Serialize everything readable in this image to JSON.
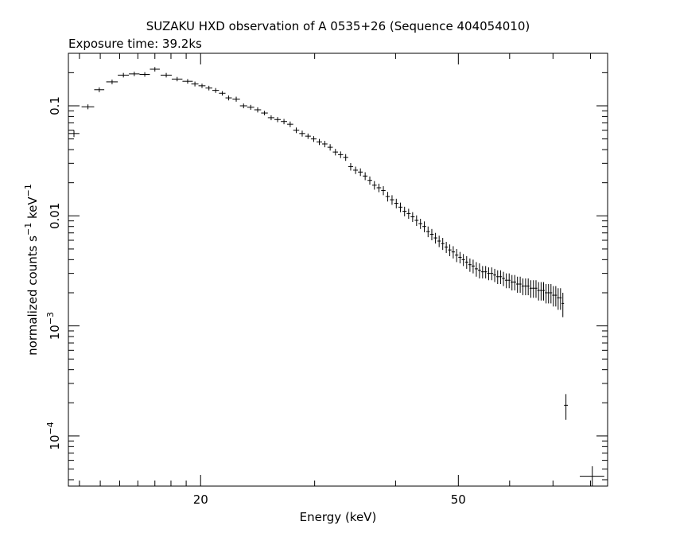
{
  "chart_data": {
    "type": "scatter",
    "title": "SUZAKU HXD observation of A 0535+26 (Sequence 404054010)",
    "subtitle": "Exposure time: 39.2ks",
    "xlabel": "Energy (keV)",
    "ylabel_main": "normalized counts s",
    "ylabel_exp1": "−1",
    "ylabel_mid": " keV",
    "ylabel_exp2": "−1",
    "x_scale": "log",
    "y_scale": "log",
    "xlim": [
      12.5,
      85
    ],
    "ylim": [
      3.5e-05,
      0.3
    ],
    "x_ticks": [
      {
        "value": 20,
        "label": "20"
      },
      {
        "value": 50,
        "label": "50"
      }
    ],
    "x_minor_ticks": [
      13,
      14,
      15,
      16,
      17,
      18,
      19,
      30,
      40,
      60,
      70,
      80
    ],
    "y_ticks": [
      {
        "value": 0.1,
        "label": "0.1",
        "exp": ""
      },
      {
        "value": 0.01,
        "label": "0.01",
        "exp": ""
      },
      {
        "value": 0.001,
        "label": "10",
        "exp": "−3"
      },
      {
        "value": 0.0001,
        "label": "10",
        "exp": "−4"
      }
    ],
    "grid": false,
    "series": [
      {
        "points": [
          [
            12.75,
            0.056,
            0.25,
            0.004
          ],
          [
            13.4,
            0.098,
            0.3,
            0.005
          ],
          [
            13.95,
            0.14,
            0.25,
            0.007
          ],
          [
            14.6,
            0.165,
            0.3,
            0.008
          ],
          [
            15.2,
            0.19,
            0.3,
            0.009
          ],
          [
            15.8,
            0.195,
            0.3,
            0.009
          ],
          [
            16.4,
            0.193,
            0.3,
            0.009
          ],
          [
            17.0,
            0.215,
            0.3,
            0.01
          ],
          [
            17.7,
            0.19,
            0.35,
            0.009
          ],
          [
            18.4,
            0.175,
            0.35,
            0.008
          ],
          [
            19.1,
            0.167,
            0.35,
            0.008
          ],
          [
            19.6,
            0.158,
            0.25,
            0.008
          ],
          [
            20.1,
            0.152,
            0.25,
            0.007
          ],
          [
            20.6,
            0.145,
            0.25,
            0.007
          ],
          [
            21.1,
            0.138,
            0.25,
            0.007
          ],
          [
            21.6,
            0.13,
            0.25,
            0.006
          ],
          [
            22.1,
            0.118,
            0.25,
            0.006
          ],
          [
            22.7,
            0.115,
            0.3,
            0.006
          ],
          [
            23.3,
            0.1,
            0.3,
            0.005
          ],
          [
            23.9,
            0.097,
            0.3,
            0.005
          ],
          [
            24.5,
            0.092,
            0.3,
            0.005
          ],
          [
            25.1,
            0.086,
            0.3,
            0.004
          ],
          [
            25.7,
            0.078,
            0.3,
            0.004
          ],
          [
            26.3,
            0.075,
            0.3,
            0.004
          ],
          [
            26.9,
            0.072,
            0.3,
            0.004
          ],
          [
            27.5,
            0.068,
            0.3,
            0.004
          ],
          [
            28.1,
            0.06,
            0.3,
            0.0035
          ],
          [
            28.7,
            0.056,
            0.3,
            0.0035
          ],
          [
            29.3,
            0.053,
            0.3,
            0.003
          ],
          [
            29.9,
            0.05,
            0.3,
            0.003
          ],
          [
            30.5,
            0.047,
            0.3,
            0.003
          ],
          [
            31.1,
            0.045,
            0.3,
            0.003
          ],
          [
            31.7,
            0.042,
            0.3,
            0.0028
          ],
          [
            32.3,
            0.038,
            0.3,
            0.0026
          ],
          [
            32.9,
            0.036,
            0.3,
            0.0025
          ],
          [
            33.5,
            0.034,
            0.3,
            0.0024
          ],
          [
            34.1,
            0.028,
            0.3,
            0.0022
          ],
          [
            34.7,
            0.026,
            0.3,
            0.002
          ],
          [
            35.3,
            0.025,
            0.3,
            0.002
          ],
          [
            35.9,
            0.023,
            0.3,
            0.0019
          ],
          [
            36.5,
            0.021,
            0.3,
            0.0018
          ],
          [
            37.1,
            0.019,
            0.3,
            0.0017
          ],
          [
            37.7,
            0.018,
            0.3,
            0.0016
          ],
          [
            38.3,
            0.017,
            0.3,
            0.0016
          ],
          [
            38.9,
            0.015,
            0.3,
            0.0015
          ],
          [
            39.5,
            0.014,
            0.3,
            0.0014
          ],
          [
            40.1,
            0.013,
            0.3,
            0.0013
          ],
          [
            40.7,
            0.012,
            0.3,
            0.0012
          ],
          [
            41.3,
            0.011,
            0.3,
            0.0011
          ],
          [
            41.9,
            0.0105,
            0.3,
            0.0011
          ],
          [
            42.5,
            0.0098,
            0.3,
            0.001
          ],
          [
            43.1,
            0.0091,
            0.3,
            0.001
          ],
          [
            43.7,
            0.0085,
            0.3,
            0.0009
          ],
          [
            44.3,
            0.008,
            0.3,
            0.0009
          ],
          [
            44.9,
            0.0072,
            0.3,
            0.0008
          ],
          [
            45.5,
            0.0068,
            0.3,
            0.0008
          ],
          [
            46.1,
            0.0063,
            0.3,
            0.0007
          ],
          [
            46.7,
            0.0059,
            0.3,
            0.0007
          ],
          [
            47.3,
            0.0056,
            0.3,
            0.0007
          ],
          [
            47.9,
            0.0052,
            0.3,
            0.0006
          ],
          [
            48.5,
            0.0049,
            0.3,
            0.0006
          ],
          [
            49.1,
            0.0047,
            0.3,
            0.0006
          ],
          [
            49.7,
            0.0044,
            0.3,
            0.0006
          ],
          [
            50.3,
            0.0042,
            0.3,
            0.0005
          ],
          [
            50.9,
            0.004,
            0.3,
            0.0005
          ],
          [
            51.5,
            0.0038,
            0.3,
            0.0005
          ],
          [
            52.1,
            0.0036,
            0.3,
            0.0005
          ],
          [
            52.7,
            0.0035,
            0.3,
            0.0005
          ],
          [
            53.3,
            0.0033,
            0.3,
            0.0005
          ],
          [
            53.9,
            0.0032,
            0.3,
            0.0005
          ],
          [
            54.5,
            0.0031,
            0.3,
            0.0004
          ],
          [
            55.1,
            0.0031,
            0.3,
            0.0004
          ],
          [
            55.7,
            0.003,
            0.3,
            0.0004
          ],
          [
            56.3,
            0.003,
            0.3,
            0.0004
          ],
          [
            56.9,
            0.0029,
            0.3,
            0.0004
          ],
          [
            57.5,
            0.0028,
            0.3,
            0.0004
          ],
          [
            58.1,
            0.0028,
            0.3,
            0.0004
          ],
          [
            58.7,
            0.0027,
            0.3,
            0.0004
          ],
          [
            59.3,
            0.0026,
            0.3,
            0.0004
          ],
          [
            59.9,
            0.0026,
            0.3,
            0.0004
          ],
          [
            60.5,
            0.0025,
            0.3,
            0.0004
          ],
          [
            61.1,
            0.0025,
            0.3,
            0.0004
          ],
          [
            61.7,
            0.0024,
            0.3,
            0.0004
          ],
          [
            62.3,
            0.0024,
            0.3,
            0.0004
          ],
          [
            62.9,
            0.0023,
            0.3,
            0.0004
          ],
          [
            63.5,
            0.0023,
            0.3,
            0.0004
          ],
          [
            64.1,
            0.0023,
            0.3,
            0.0004
          ],
          [
            64.7,
            0.0022,
            0.3,
            0.0004
          ],
          [
            65.3,
            0.0022,
            0.3,
            0.0004
          ],
          [
            65.9,
            0.0022,
            0.3,
            0.0004
          ],
          [
            66.5,
            0.0021,
            0.3,
            0.0004
          ],
          [
            67.1,
            0.0021,
            0.3,
            0.0004
          ],
          [
            67.7,
            0.0021,
            0.3,
            0.0004
          ],
          [
            68.3,
            0.002,
            0.3,
            0.0004
          ],
          [
            68.9,
            0.002,
            0.3,
            0.0004
          ],
          [
            69.5,
            0.002,
            0.3,
            0.0004
          ],
          [
            70.1,
            0.0019,
            0.3,
            0.0004
          ],
          [
            70.7,
            0.0019,
            0.3,
            0.0004
          ],
          [
            71.3,
            0.0018,
            0.3,
            0.0004
          ],
          [
            71.9,
            0.0018,
            0.3,
            0.0004
          ],
          [
            72.5,
            0.0016,
            0.3,
            0.0004
          ],
          [
            73.3,
            0.00019,
            0.5,
            5e-05
          ],
          [
            80.5,
            4.3e-05,
            3.5,
            1e-05
          ]
        ]
      }
    ]
  }
}
